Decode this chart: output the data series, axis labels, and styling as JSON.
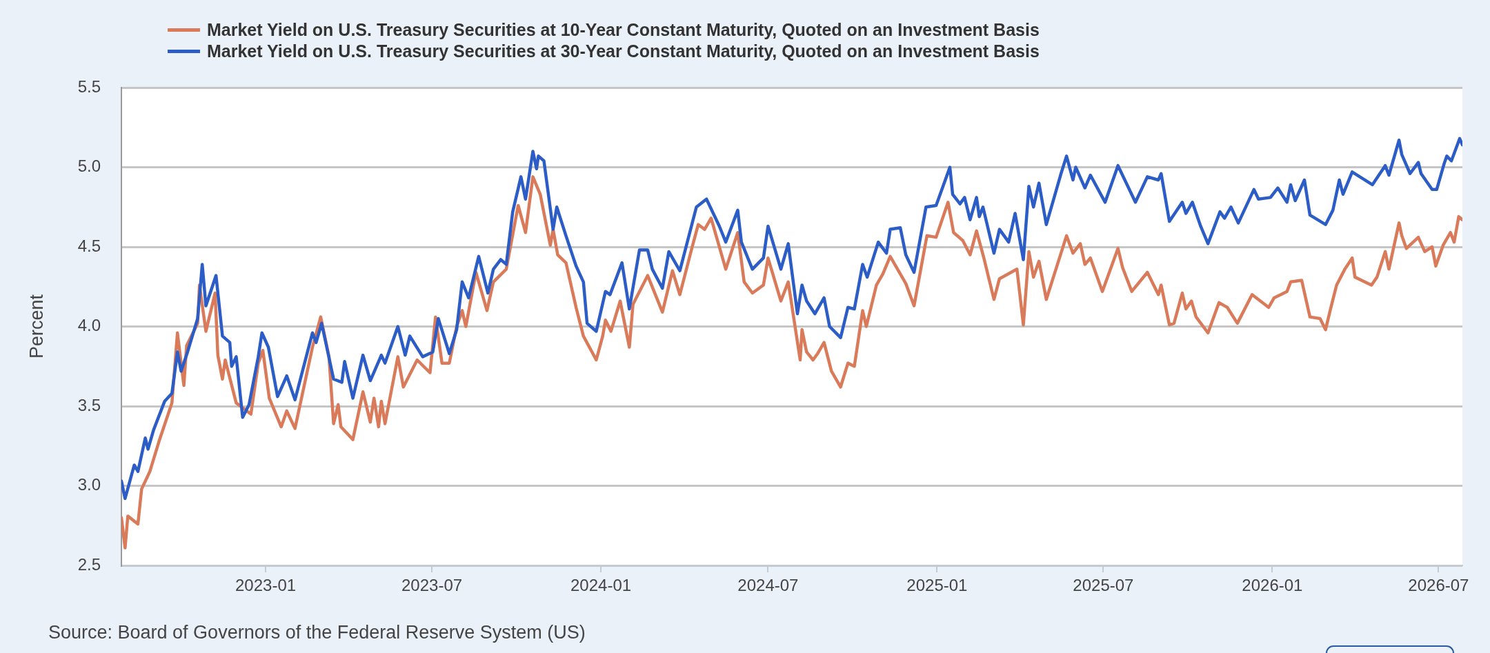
{
  "chart_data": {
    "type": "line",
    "ylabel": "Percent",
    "annotations": [
      "Source: Board of Governors of the Federal Reserve System (US)"
    ],
    "xlim": [
      "2022-07-28",
      "2026-07-27"
    ],
    "xticks": [
      "2023-01",
      "2023-07",
      "2024-01",
      "2024-07",
      "2025-01",
      "2025-07",
      "2026-01",
      "2026-07"
    ],
    "ylim": [
      2.5,
      5.5
    ],
    "yticks": [
      2.5,
      {
        "value": 3,
        "label": "3.0"
      },
      3.5,
      {
        "value": 4,
        "label": "4.0"
      },
      4.5,
      {
        "value": 5,
        "label": "5.0"
      },
      5.5
    ],
    "grid": "y",
    "legend": "top left",
    "series": [
      {
        "name": "Market Yield on U.S. Treasury Securities at 10-Year Constant Maturity, Quoted on an Investment Basis",
        "color": "#d97b5a",
        "x": [
          "2022-07-28",
          "2022-08-01",
          "2022-08-04",
          "2022-08-15",
          "2022-08-19",
          "2022-08-28",
          "2022-09-07",
          "2022-09-21",
          "2022-09-27",
          "2022-10-01",
          "2022-10-04",
          "2022-10-07",
          "2022-10-19",
          "2022-10-21",
          "2022-10-28",
          "2022-11-07",
          "2022-11-10",
          "2022-11-15",
          "2022-11-18",
          "2022-11-30",
          "2022-12-16",
          "2022-12-24",
          "2022-12-29",
          "2023-01-05",
          "2023-01-18",
          "2023-01-24",
          "2023-02-02",
          "2023-02-21",
          "2023-03-02",
          "2023-03-11",
          "2023-03-16",
          "2023-03-21",
          "2023-03-24",
          "2023-04-06",
          "2023-04-17",
          "2023-04-25",
          "2023-04-29",
          "2023-05-04",
          "2023-05-07",
          "2023-05-11",
          "2023-05-25",
          "2023-05-31",
          "2023-06-15",
          "2023-06-29",
          "2023-07-05",
          "2023-07-12",
          "2023-07-20",
          "2023-07-28",
          "2023-08-03",
          "2023-08-07",
          "2023-08-18",
          "2023-08-30",
          "2023-09-06",
          "2023-09-20",
          "2023-10-03",
          "2023-10-11",
          "2023-10-19",
          "2023-10-27",
          "2023-11-07",
          "2023-11-10",
          "2023-11-15",
          "2023-11-24",
          "2023-12-05",
          "2023-12-13",
          "2023-12-27",
          "2024-01-03",
          "2024-01-06",
          "2024-01-12",
          "2024-01-22",
          "2024-02-01",
          "2024-02-05",
          "2024-02-21",
          "2024-03-08",
          "2024-03-19",
          "2024-03-27",
          "2024-04-09",
          "2024-04-16",
          "2024-04-23",
          "2024-04-30",
          "2024-05-16",
          "2024-05-29",
          "2024-06-05",
          "2024-06-14",
          "2024-06-26",
          "2024-07-01",
          "2024-07-15",
          "2024-07-23",
          "2024-08-05",
          "2024-08-07",
          "2024-08-12",
          "2024-08-19",
          "2024-08-24",
          "2024-08-31",
          "2024-09-08",
          "2024-09-18",
          "2024-09-26",
          "2024-10-03",
          "2024-10-12",
          "2024-10-16",
          "2024-10-27",
          "2024-11-03",
          "2024-11-11",
          "2024-11-28",
          "2024-12-07",
          "2024-12-21",
          "2024-12-31",
          "2025-01-13",
          "2025-01-19",
          "2025-01-29",
          "2025-02-06",
          "2025-02-13",
          "2025-02-21",
          "2025-03-04",
          "2025-03-10",
          "2025-03-29",
          "2025-04-05",
          "2025-04-11",
          "2025-04-16",
          "2025-04-22",
          "2025-04-30",
          "2025-05-22",
          "2025-05-29",
          "2025-06-06",
          "2025-06-11",
          "2025-06-17",
          "2025-06-30",
          "2025-07-17",
          "2025-07-22",
          "2025-08-01",
          "2025-08-18",
          "2025-08-30",
          "2025-09-02",
          "2025-09-11",
          "2025-09-16",
          "2025-09-25",
          "2025-09-29",
          "2025-10-05",
          "2025-10-10",
          "2025-10-23",
          "2025-11-04",
          "2025-11-13",
          "2025-11-24",
          "2025-12-10",
          "2025-12-28",
          "2026-01-03",
          "2026-01-17",
          "2026-01-21",
          "2026-02-02",
          "2026-02-11",
          "2026-02-22",
          "2026-02-28",
          "2026-03-05",
          "2026-03-12",
          "2026-03-21",
          "2026-03-29",
          "2026-04-01",
          "2026-04-19",
          "2026-04-25",
          "2026-05-04",
          "2026-05-08",
          "2026-05-19",
          "2026-05-22",
          "2026-05-27",
          "2026-06-09",
          "2026-06-16",
          "2026-06-24",
          "2026-06-28",
          "2026-07-06",
          "2026-07-14",
          "2026-07-18",
          "2026-07-23",
          "2026-07-27"
        ],
        "values": [
          2.8,
          2.61,
          2.81,
          2.76,
          2.98,
          3.09,
          3.28,
          3.52,
          3.96,
          3.77,
          3.63,
          3.88,
          4.02,
          4.26,
          3.97,
          4.21,
          3.82,
          3.67,
          3.79,
          3.52,
          3.45,
          3.77,
          3.85,
          3.55,
          3.37,
          3.47,
          3.36,
          3.87,
          4.06,
          3.81,
          3.39,
          3.51,
          3.37,
          3.29,
          3.59,
          3.4,
          3.55,
          3.37,
          3.53,
          3.39,
          3.81,
          3.62,
          3.79,
          3.71,
          4.06,
          3.77,
          3.77,
          4.0,
          4.1,
          4.0,
          4.34,
          4.1,
          4.28,
          4.36,
          4.76,
          4.59,
          4.94,
          4.83,
          4.51,
          4.61,
          4.45,
          4.4,
          4.12,
          3.94,
          3.79,
          3.94,
          4.04,
          3.97,
          4.16,
          3.87,
          4.14,
          4.32,
          4.09,
          4.35,
          4.2,
          4.49,
          4.64,
          4.61,
          4.68,
          4.36,
          4.59,
          4.28,
          4.21,
          4.26,
          4.43,
          4.16,
          4.28,
          3.79,
          3.98,
          3.84,
          3.79,
          3.83,
          3.9,
          3.72,
          3.62,
          3.77,
          3.75,
          4.1,
          4.0,
          4.26,
          4.33,
          4.44,
          4.27,
          4.13,
          4.57,
          4.56,
          4.78,
          4.59,
          4.54,
          4.45,
          4.6,
          4.43,
          4.17,
          4.3,
          4.36,
          4.01,
          4.47,
          4.31,
          4.41,
          4.17,
          4.57,
          4.46,
          4.52,
          4.39,
          4.43,
          4.22,
          4.49,
          4.37,
          4.22,
          4.34,
          4.2,
          4.26,
          4.01,
          4.02,
          4.21,
          4.11,
          4.16,
          4.06,
          3.96,
          4.15,
          4.12,
          4.02,
          4.2,
          4.12,
          4.18,
          4.22,
          4.28,
          4.29,
          4.06,
          4.05,
          3.98,
          4.1,
          4.26,
          4.36,
          4.43,
          4.31,
          4.26,
          4.31,
          4.47,
          4.36,
          4.65,
          4.57,
          4.49,
          4.56,
          4.47,
          4.5,
          4.38,
          4.51,
          4.59,
          4.53,
          4.69,
          4.67
        ]
      },
      {
        "name": "Market Yield on U.S. Treasury Securities at 30-Year Constant Maturity, Quoted on an Investment Basis",
        "color": "#2c5cc5",
        "x": [
          "2022-07-28",
          "2022-08-01",
          "2022-08-11",
          "2022-08-15",
          "2022-08-23",
          "2022-08-26",
          "2022-09-01",
          "2022-09-13",
          "2022-09-21",
          "2022-09-27",
          "2022-10-01",
          "2022-10-08",
          "2022-10-19",
          "2022-10-24",
          "2022-10-28",
          "2022-11-08",
          "2022-11-15",
          "2022-11-23",
          "2022-11-25",
          "2022-11-30",
          "2022-12-07",
          "2022-12-14",
          "2022-12-24",
          "2022-12-28",
          "2023-01-04",
          "2023-01-14",
          "2023-01-24",
          "2023-02-02",
          "2023-02-21",
          "2023-02-25",
          "2023-03-03",
          "2023-03-16",
          "2023-03-25",
          "2023-03-28",
          "2023-04-06",
          "2023-04-17",
          "2023-04-25",
          "2023-05-07",
          "2023-05-11",
          "2023-05-25",
          "2023-06-02",
          "2023-06-07",
          "2023-06-21",
          "2023-07-02",
          "2023-07-08",
          "2023-07-20",
          "2023-07-28",
          "2023-08-03",
          "2023-08-10",
          "2023-08-21",
          "2023-08-31",
          "2023-09-06",
          "2023-09-14",
          "2023-09-20",
          "2023-09-27",
          "2023-10-06",
          "2023-10-11",
          "2023-10-19",
          "2023-10-23",
          "2023-10-25",
          "2023-10-31",
          "2023-11-10",
          "2023-11-14",
          "2023-11-24",
          "2023-12-05",
          "2023-12-13",
          "2023-12-17",
          "2023-12-27",
          "2024-01-06",
          "2024-01-11",
          "2024-01-24",
          "2024-02-01",
          "2024-02-12",
          "2024-02-21",
          "2024-02-26",
          "2024-03-08",
          "2024-03-15",
          "2024-03-27",
          "2024-04-14",
          "2024-04-25",
          "2024-05-09",
          "2024-05-16",
          "2024-05-29",
          "2024-06-02",
          "2024-06-14",
          "2024-06-26",
          "2024-07-01",
          "2024-07-15",
          "2024-07-23",
          "2024-08-02",
          "2024-08-07",
          "2024-08-12",
          "2024-08-21",
          "2024-08-31",
          "2024-09-06",
          "2024-09-18",
          "2024-09-26",
          "2024-10-03",
          "2024-10-12",
          "2024-10-17",
          "2024-10-29",
          "2024-11-07",
          "2024-11-11",
          "2024-11-22",
          "2024-11-28",
          "2024-12-07",
          "2024-12-20",
          "2024-12-31",
          "2025-01-15",
          "2025-01-18",
          "2025-01-26",
          "2025-01-31",
          "2025-02-06",
          "2025-02-13",
          "2025-02-16",
          "2025-02-20",
          "2025-03-04",
          "2025-03-10",
          "2025-03-20",
          "2025-03-27",
          "2025-04-05",
          "2025-04-11",
          "2025-04-16",
          "2025-04-22",
          "2025-04-30",
          "2025-05-16",
          "2025-05-22",
          "2025-05-29",
          "2025-06-01",
          "2025-06-11",
          "2025-06-17",
          "2025-07-03",
          "2025-07-17",
          "2025-08-05",
          "2025-08-18",
          "2025-08-30",
          "2025-09-02",
          "2025-09-11",
          "2025-09-25",
          "2025-09-29",
          "2025-10-06",
          "2025-10-15",
          "2025-10-23",
          "2025-11-05",
          "2025-11-10",
          "2025-11-17",
          "2025-11-25",
          "2025-12-12",
          "2025-12-17",
          "2025-12-30",
          "2026-01-07",
          "2026-01-17",
          "2026-01-21",
          "2026-01-26",
          "2026-02-05",
          "2026-02-11",
          "2026-02-28",
          "2026-03-08",
          "2026-03-15",
          "2026-03-19",
          "2026-03-29",
          "2026-04-20",
          "2026-05-04",
          "2026-05-08",
          "2026-05-19",
          "2026-05-22",
          "2026-05-31",
          "2026-06-09",
          "2026-06-12",
          "2026-06-24",
          "2026-06-29",
          "2026-07-07",
          "2026-07-10",
          "2026-07-15",
          "2026-07-24",
          "2026-07-27"
        ],
        "values": [
          3.03,
          2.92,
          3.13,
          3.09,
          3.3,
          3.23,
          3.35,
          3.53,
          3.58,
          3.84,
          3.72,
          3.84,
          4.05,
          4.39,
          4.13,
          4.32,
          3.94,
          3.9,
          3.75,
          3.81,
          3.43,
          3.51,
          3.81,
          3.96,
          3.87,
          3.56,
          3.69,
          3.54,
          3.96,
          3.9,
          4.02,
          3.67,
          3.65,
          3.78,
          3.55,
          3.82,
          3.66,
          3.82,
          3.77,
          4.0,
          3.82,
          3.94,
          3.81,
          3.84,
          4.05,
          3.83,
          3.98,
          4.28,
          4.18,
          4.44,
          4.21,
          4.36,
          4.42,
          4.39,
          4.72,
          4.94,
          4.8,
          5.1,
          4.99,
          5.07,
          5.04,
          4.61,
          4.75,
          4.57,
          4.38,
          4.28,
          4.02,
          3.97,
          4.22,
          4.2,
          4.4,
          4.11,
          4.48,
          4.48,
          4.36,
          4.24,
          4.47,
          4.35,
          4.75,
          4.8,
          4.63,
          4.53,
          4.73,
          4.53,
          4.36,
          4.43,
          4.63,
          4.36,
          4.52,
          4.08,
          4.26,
          4.16,
          4.08,
          4.18,
          4.0,
          3.93,
          4.12,
          4.11,
          4.39,
          4.31,
          4.53,
          4.46,
          4.61,
          4.62,
          4.45,
          4.34,
          4.75,
          4.76,
          5.0,
          4.83,
          4.77,
          4.81,
          4.67,
          4.81,
          4.69,
          4.75,
          4.46,
          4.61,
          4.53,
          4.71,
          4.42,
          4.88,
          4.75,
          4.9,
          4.64,
          4.96,
          5.07,
          4.92,
          5.0,
          4.87,
          4.95,
          4.78,
          5.01,
          4.78,
          4.94,
          4.92,
          4.96,
          4.66,
          4.78,
          4.71,
          4.78,
          4.63,
          4.52,
          4.72,
          4.68,
          4.75,
          4.65,
          4.86,
          4.8,
          4.81,
          4.87,
          4.78,
          4.89,
          4.79,
          4.92,
          4.7,
          4.64,
          4.73,
          4.92,
          4.83,
          4.97,
          4.89,
          5.01,
          4.95,
          5.17,
          5.08,
          4.96,
          5.03,
          4.96,
          4.86,
          4.86,
          5.02,
          5.07,
          5.04,
          5.18,
          5.14
        ]
      }
    ]
  }
}
